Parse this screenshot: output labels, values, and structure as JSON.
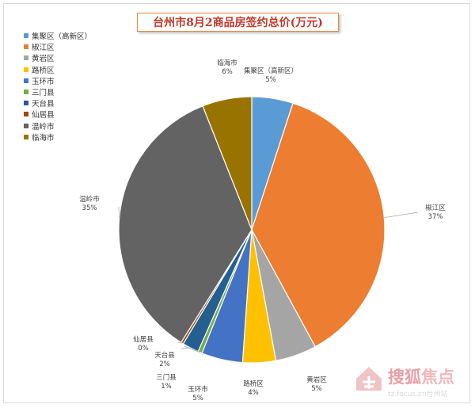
{
  "chart_data": {
    "type": "pie",
    "title": "台州市8月2商品房签约总价(万元)",
    "legend_position": "top-left",
    "slices": [
      {
        "name": "集聚区（高新区）",
        "value": 5,
        "label_name": "集聚区（高新区）",
        "label_pct": "5%",
        "color": "#5b9bd5"
      },
      {
        "name": "椒江区",
        "value": 37,
        "label_name": "椒江区",
        "label_pct": "37%",
        "color": "#ed7d31"
      },
      {
        "name": "黄岩区",
        "value": 5,
        "label_name": "黄岩区",
        "label_pct": "5%",
        "color": "#a5a5a5"
      },
      {
        "name": "路桥区",
        "value": 4,
        "label_name": "路桥区",
        "label_pct": "4%",
        "color": "#ffc000"
      },
      {
        "name": "玉环市",
        "value": 5,
        "label_name": "玉环市",
        "label_pct": "5%",
        "color": "#4472c4"
      },
      {
        "name": "三门县",
        "value": 0.5,
        "label_name": "三门县",
        "label_pct": "1%",
        "color": "#70ad47"
      },
      {
        "name": "天台县",
        "value": 2,
        "label_name": "天台县",
        "label_pct": "2%",
        "color": "#255e91"
      },
      {
        "name": "仙居县",
        "value": 0.3,
        "label_name": "仙居县",
        "label_pct": "0%",
        "color": "#9e480e"
      },
      {
        "name": "温岭市",
        "value": 35,
        "label_name": "温岭市",
        "label_pct": "35%",
        "color": "#636363"
      },
      {
        "name": "临海市",
        "value": 6,
        "label_name": "临海市",
        "label_pct": "6%",
        "color": "#997300"
      }
    ]
  },
  "watermark": {
    "brand_a": "搜狐",
    "brand_b": "焦点",
    "url": "tz.focus.cn台州站"
  }
}
